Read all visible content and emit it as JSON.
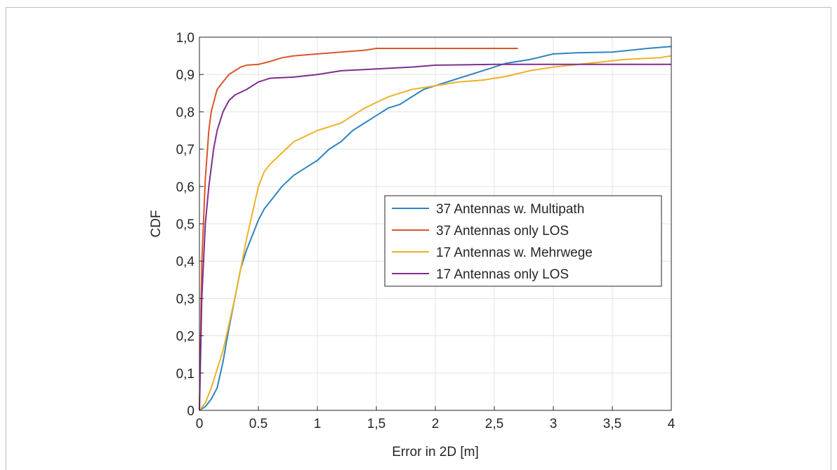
{
  "chart_data": {
    "type": "line",
    "title": "",
    "xlabel": "Error in 2D [m]",
    "ylabel": "CDF",
    "xlim": [
      0,
      4
    ],
    "ylim": [
      0,
      1
    ],
    "xticks": [
      0,
      0.5,
      1,
      1.5,
      2,
      2.5,
      3,
      3.5,
      4
    ],
    "xtick_labels": [
      "0",
      "0.5",
      "1",
      "1,5",
      "2",
      "2,5",
      "3",
      "3,5",
      "4"
    ],
    "yticks": [
      0,
      0.1,
      0.2,
      0.3,
      0.4,
      0.5,
      0.6,
      0.7,
      0.8,
      0.9,
      1.0
    ],
    "ytick_labels": [
      "0",
      "0,1",
      "0,2",
      "0,3",
      "0,4",
      "0,5",
      "0,6",
      "0,7",
      "0,8",
      "0,9",
      "1,0"
    ],
    "grid": true,
    "legend_position": "center-right",
    "series": [
      {
        "name": "37 Antennas w. Multipath",
        "color": "#2f83c2",
        "x": [
          0,
          0.05,
          0.1,
          0.15,
          0.2,
          0.25,
          0.3,
          0.35,
          0.4,
          0.45,
          0.5,
          0.55,
          0.6,
          0.7,
          0.8,
          0.9,
          1.0,
          1.1,
          1.2,
          1.3,
          1.4,
          1.5,
          1.6,
          1.7,
          1.8,
          1.9,
          2.0,
          2.2,
          2.4,
          2.6,
          2.8,
          3.0,
          3.2,
          3.5,
          3.8,
          4.0
        ],
        "y": [
          0,
          0.01,
          0.03,
          0.06,
          0.13,
          0.22,
          0.3,
          0.38,
          0.43,
          0.47,
          0.51,
          0.54,
          0.56,
          0.6,
          0.63,
          0.65,
          0.67,
          0.7,
          0.72,
          0.75,
          0.77,
          0.79,
          0.81,
          0.82,
          0.84,
          0.86,
          0.87,
          0.89,
          0.91,
          0.93,
          0.94,
          0.955,
          0.958,
          0.96,
          0.97,
          0.975
        ]
      },
      {
        "name": "37 Antennas only LOS",
        "color": "#d9562a",
        "x": [
          0,
          0.02,
          0.05,
          0.08,
          0.1,
          0.15,
          0.2,
          0.25,
          0.3,
          0.35,
          0.4,
          0.5,
          0.6,
          0.7,
          0.8,
          1.0,
          1.2,
          1.4,
          1.5,
          1.55,
          2.0,
          2.5,
          2.7
        ],
        "y": [
          0,
          0.4,
          0.62,
          0.75,
          0.8,
          0.86,
          0.88,
          0.9,
          0.91,
          0.92,
          0.925,
          0.927,
          0.935,
          0.945,
          0.95,
          0.955,
          0.96,
          0.965,
          0.97,
          0.97,
          0.97,
          0.97,
          0.97
        ]
      },
      {
        "name": "17 Antennas w. Mehrwege",
        "color": "#eeb227",
        "x": [
          0,
          0.05,
          0.1,
          0.15,
          0.2,
          0.25,
          0.3,
          0.35,
          0.4,
          0.45,
          0.5,
          0.55,
          0.6,
          0.7,
          0.8,
          0.9,
          1.0,
          1.2,
          1.4,
          1.6,
          1.8,
          2.0,
          2.2,
          2.4,
          2.6,
          2.8,
          3.0,
          3.3,
          3.6,
          3.9,
          4.0
        ],
        "y": [
          0,
          0.02,
          0.06,
          0.11,
          0.16,
          0.23,
          0.3,
          0.38,
          0.46,
          0.53,
          0.6,
          0.64,
          0.66,
          0.69,
          0.72,
          0.735,
          0.75,
          0.77,
          0.81,
          0.84,
          0.86,
          0.87,
          0.88,
          0.885,
          0.895,
          0.91,
          0.92,
          0.93,
          0.94,
          0.945,
          0.95
        ]
      },
      {
        "name": "17 Antennas only LOS",
        "color": "#7e2f8e",
        "x": [
          0,
          0.02,
          0.05,
          0.08,
          0.1,
          0.12,
          0.15,
          0.2,
          0.25,
          0.3,
          0.4,
          0.5,
          0.6,
          0.8,
          1.0,
          1.2,
          1.5,
          1.8,
          2.0,
          2.5,
          3.0,
          3.5,
          4.0
        ],
        "y": [
          0,
          0.3,
          0.5,
          0.6,
          0.65,
          0.7,
          0.75,
          0.8,
          0.83,
          0.845,
          0.86,
          0.88,
          0.89,
          0.893,
          0.9,
          0.91,
          0.915,
          0.92,
          0.925,
          0.927,
          0.927,
          0.927,
          0.927
        ]
      }
    ]
  }
}
